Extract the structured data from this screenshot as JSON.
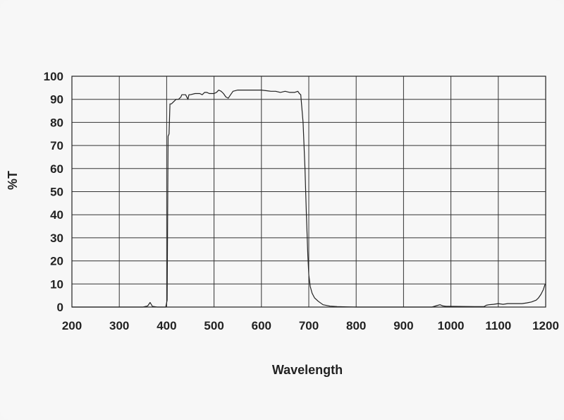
{
  "chart_data": {
    "type": "line",
    "title": "",
    "xlabel": "Wavelength",
    "ylabel": "%T",
    "xlim": [
      200,
      1200
    ],
    "ylim": [
      0,
      100
    ],
    "xticks": [
      200,
      300,
      400,
      500,
      600,
      700,
      800,
      900,
      1000,
      1100,
      1200
    ],
    "yticks": [
      0,
      10,
      20,
      30,
      40,
      50,
      60,
      70,
      80,
      90,
      100
    ],
    "grid": true,
    "legend": "none",
    "series": [
      {
        "x": [
          200,
          350,
          360,
          365,
          370,
          380,
          398,
          401,
          403,
          405,
          407,
          410,
          420,
          425,
          430,
          432,
          440,
          445,
          447,
          450,
          460,
          470,
          475,
          480,
          485,
          490,
          500,
          505,
          510,
          515,
          520,
          525,
          530,
          535,
          540,
          550,
          560,
          570,
          600,
          620,
          630,
          640,
          650,
          660,
          670,
          677,
          680,
          683,
          688,
          692,
          695,
          698,
          700,
          703,
          707,
          712,
          720,
          730,
          745,
          760,
          780,
          800,
          850,
          900,
          960,
          970,
          977,
          983,
          990,
          1000,
          1050,
          1070,
          1075,
          1080,
          1090,
          1100,
          1110,
          1120,
          1150,
          1160,
          1170,
          1180,
          1185,
          1190,
          1195,
          1198,
          1200
        ],
        "y": [
          0,
          0,
          0.5,
          2,
          0.3,
          0,
          0,
          3,
          74,
          75,
          88,
          88,
          90,
          90,
          91,
          92,
          92,
          90,
          92,
          92,
          92.5,
          92.5,
          92,
          93,
          93,
          92.5,
          92.5,
          93,
          94,
          93.5,
          92.5,
          91,
          90.5,
          92,
          93.5,
          94,
          94,
          94,
          94,
          93.5,
          93.5,
          93,
          93.5,
          93,
          93,
          93.5,
          92.5,
          92,
          80,
          60,
          40,
          22,
          14,
          9,
          6,
          4,
          2.5,
          1,
          0.4,
          0.2,
          0.1,
          0,
          0,
          0,
          0,
          0.6,
          1,
          0.5,
          0.3,
          0.3,
          0.2,
          0.2,
          0.8,
          1,
          1.2,
          1.5,
          1.2,
          1.5,
          1.5,
          1.8,
          2.2,
          3,
          4,
          5.5,
          7.5,
          9.5,
          10
        ]
      }
    ]
  }
}
